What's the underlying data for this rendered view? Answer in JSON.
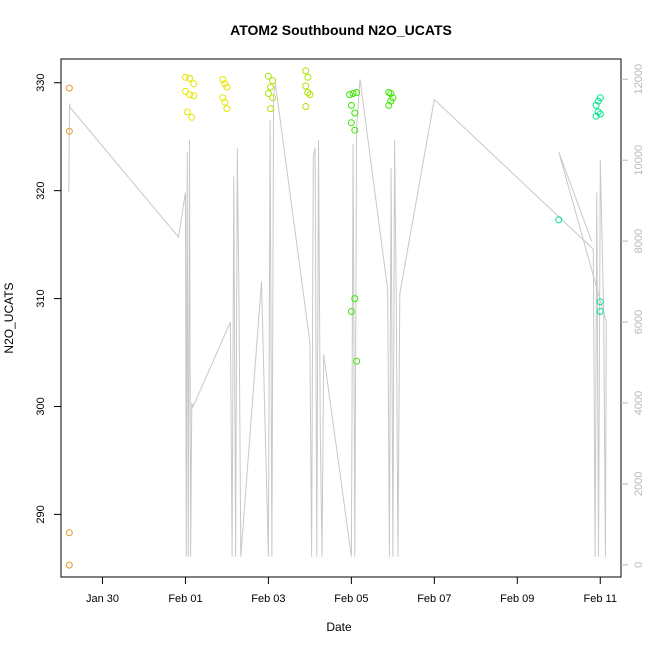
{
  "chart_data": {
    "type": "scatter",
    "title": "ATOM2 Southbound N2O_UCATS",
    "xlabel": "Date",
    "ylabel": "N2O_UCATS",
    "x_ticks": [
      "Jan 30",
      "Feb 01",
      "Feb 03",
      "Feb 05",
      "Feb 07",
      "Feb 09",
      "Feb 11"
    ],
    "y_ticks": [
      290,
      300,
      310,
      320,
      330
    ],
    "y2_ticks": [
      0,
      2000,
      4000,
      6000,
      8000,
      10000,
      12000
    ],
    "xlim": [
      "2017-01-29T00:00",
      "2017-02-11T12:00"
    ],
    "ylim": [
      284.2,
      332.2
    ],
    "y2lim": [
      -300,
      12500
    ],
    "grid": false,
    "series": [
      {
        "color": "#E8962C",
        "points": [
          [
            "2017-01-29T04:48",
            329.5
          ],
          [
            "2017-01-29T04:48",
            325.5
          ],
          [
            "2017-01-29T04:48",
            288.3
          ],
          [
            "2017-01-29T04:48",
            285.3
          ]
        ]
      },
      {
        "color": "#E6E600",
        "points": [
          [
            "2017-02-01T00:00",
            330.5
          ],
          [
            "2017-02-01T02:24",
            330.4
          ],
          [
            "2017-02-01T04:48",
            329.9
          ],
          [
            "2017-02-01T00:00",
            329.2
          ],
          [
            "2017-02-01T02:24",
            328.9
          ],
          [
            "2017-02-01T04:48",
            328.8
          ],
          [
            "2017-02-01T01:12",
            327.3
          ],
          [
            "2017-02-01T03:36",
            326.8
          ],
          [
            "2017-02-01T21:36",
            330.3
          ],
          [
            "2017-02-01T22:48",
            329.9
          ],
          [
            "2017-02-02T00:00",
            329.6
          ],
          [
            "2017-02-01T21:36",
            328.6
          ],
          [
            "2017-02-01T22:48",
            328.2
          ],
          [
            "2017-02-02T00:00",
            327.6
          ]
        ]
      },
      {
        "color": "#AEE600",
        "points": [
          [
            "2017-02-03T00:00",
            330.6
          ],
          [
            "2017-02-03T02:24",
            330.2
          ],
          [
            "2017-02-03T01:12",
            329.6
          ],
          [
            "2017-02-03T00:00",
            329.0
          ],
          [
            "2017-02-03T02:24",
            328.6
          ],
          [
            "2017-02-03T01:12",
            327.6
          ],
          [
            "2017-02-03T21:36",
            331.1
          ],
          [
            "2017-02-03T22:48",
            330.5
          ],
          [
            "2017-02-03T21:36",
            329.7
          ],
          [
            "2017-02-03T22:48",
            329.1
          ],
          [
            "2017-02-04T00:00",
            328.9
          ],
          [
            "2017-02-03T21:36",
            327.8
          ]
        ]
      },
      {
        "color": "#3CE600",
        "points": [
          [
            "2017-02-04T23:00",
            328.9
          ],
          [
            "2017-02-05T01:00",
            329.0
          ],
          [
            "2017-02-05T03:00",
            329.1
          ],
          [
            "2017-02-05T00:00",
            327.9
          ],
          [
            "2017-02-05T02:00",
            327.2
          ],
          [
            "2017-02-05T00:00",
            326.3
          ],
          [
            "2017-02-05T02:00",
            325.6
          ],
          [
            "2017-02-05T02:00",
            310.0
          ],
          [
            "2017-02-05T00:00",
            308.8
          ],
          [
            "2017-02-05T03:00",
            304.2
          ],
          [
            "2017-02-05T21:36",
            329.1
          ],
          [
            "2017-02-05T22:48",
            329.0
          ],
          [
            "2017-02-06T00:00",
            328.6
          ],
          [
            "2017-02-05T21:36",
            327.9
          ],
          [
            "2017-02-05T22:48",
            328.3
          ]
        ]
      },
      {
        "color": "#00E68A",
        "points": [
          [
            "2017-02-10T00:00",
            317.3
          ],
          [
            "2017-02-10T22:48",
            328.3
          ],
          [
            "2017-02-11T00:00",
            328.6
          ],
          [
            "2017-02-10T21:36",
            327.9
          ],
          [
            "2017-02-10T22:48",
            327.3
          ],
          [
            "2017-02-11T00:00",
            327.1
          ],
          [
            "2017-02-10T21:36",
            326.9
          ],
          [
            "2017-02-11T00:00",
            309.7
          ],
          [
            "2017-02-11T00:00",
            308.8
          ]
        ]
      }
    ],
    "altitude_line": {
      "color": "#c8c8c8",
      "path": [
        [
          "2017-01-29T04:30",
          9200
        ],
        [
          "2017-01-29T04:48",
          10800
        ],
        [
          "2017-01-29T05:00",
          11400
        ],
        [
          "2017-01-29T05:20",
          11300
        ],
        [
          "2017-01-31T20:00",
          8100
        ],
        [
          "2017-02-01T00:00",
          9200
        ],
        [
          "2017-02-01T00:30",
          200
        ],
        [
          "2017-02-01T01:00",
          10200
        ],
        [
          "2017-02-01T01:40",
          200
        ],
        [
          "2017-02-01T02:20",
          10500
        ],
        [
          "2017-02-01T03:00",
          200
        ],
        [
          "2017-02-01T03:40",
          4000
        ],
        [
          "2017-02-01T04:20",
          3900
        ],
        [
          "2017-02-02T02:00",
          6000
        ],
        [
          "2017-02-02T03:00",
          200
        ],
        [
          "2017-02-02T04:00",
          9600
        ],
        [
          "2017-02-02T05:00",
          200
        ],
        [
          "2017-02-02T06:00",
          10300
        ],
        [
          "2017-02-02T07:00",
          6500
        ],
        [
          "2017-02-02T08:00",
          200
        ],
        [
          "2017-02-02T20:00",
          7000
        ],
        [
          "2017-02-03T00:00",
          200
        ],
        [
          "2017-02-03T01:00",
          11000
        ],
        [
          "2017-02-03T02:00",
          200
        ],
        [
          "2017-02-03T03:00",
          11600
        ],
        [
          "2017-02-03T04:00",
          11900
        ],
        [
          "2017-02-04T00:00",
          5500
        ],
        [
          "2017-02-04T01:00",
          200
        ],
        [
          "2017-02-04T02:00",
          10100
        ],
        [
          "2017-02-04T03:00",
          10300
        ],
        [
          "2017-02-04T04:00",
          200
        ],
        [
          "2017-02-04T05:00",
          10500
        ],
        [
          "2017-02-04T06:00",
          3300
        ],
        [
          "2017-02-04T07:00",
          200
        ],
        [
          "2017-02-04T08:00",
          5200
        ],
        [
          "2017-02-05T00:00",
          200
        ],
        [
          "2017-02-05T01:00",
          10400
        ],
        [
          "2017-02-05T02:00",
          200
        ],
        [
          "2017-02-05T03:00",
          10800
        ],
        [
          "2017-02-05T05:00",
          12000
        ],
        [
          "2017-02-05T21:00",
          6800
        ],
        [
          "2017-02-05T22:00",
          200
        ],
        [
          "2017-02-05T23:00",
          9800
        ],
        [
          "2017-02-06T00:00",
          200
        ],
        [
          "2017-02-06T01:00",
          10500
        ],
        [
          "2017-02-06T02:00",
          6400
        ],
        [
          "2017-02-06T03:00",
          200
        ],
        [
          "2017-02-06T04:00",
          6700
        ],
        [
          "2017-02-07T00:00",
          11500
        ],
        [
          "2017-02-10T20:00",
          7800
        ],
        [
          "2017-02-10T21:00",
          200
        ],
        [
          "2017-02-10T22:00",
          9200
        ],
        [
          "2017-02-10T23:00",
          200
        ],
        [
          "2017-02-11T00:00",
          10000
        ],
        [
          "2017-02-11T02:00",
          6200
        ],
        [
          "2017-02-11T03:00",
          200
        ],
        [
          "2017-02-11T03:30",
          6000
        ],
        [
          "2017-02-10T00:00",
          10200
        ],
        [
          "2017-02-10T19:00",
          8000
        ]
      ]
    }
  }
}
